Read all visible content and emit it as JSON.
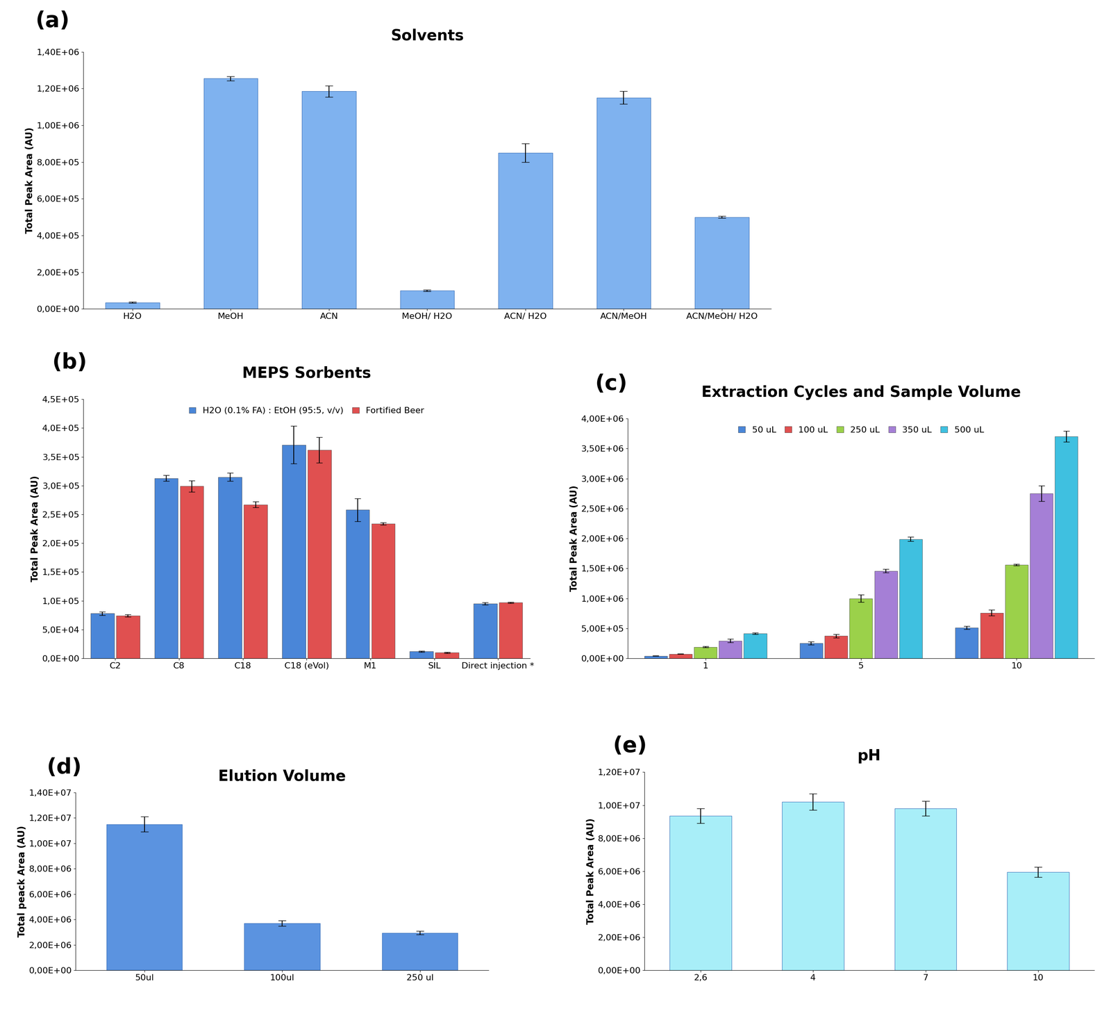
{
  "chart_data": [
    {
      "type": "bar",
      "annotation": "(a)",
      "title": "Solvents",
      "y_label": "Total Peak Area (AU)",
      "categories": [
        "H2O",
        "MeOH",
        "ACN",
        "MeOH/ H2O",
        "ACN/ H2O",
        "ACN/MeOH",
        "ACN/MeOH/ H2O"
      ],
      "values": [
        35000,
        1255000,
        1185000,
        100000,
        850000,
        1150000,
        500000
      ],
      "errors": [
        3000,
        12000,
        30000,
        4000,
        50000,
        35000,
        5000
      ],
      "color": "#7fb2ef",
      "ylim": [
        0,
        1400000
      ],
      "yticks": [
        {
          "value": 0,
          "label": "0,00E+00"
        },
        {
          "value": 200000,
          "label": "2,00E+05"
        },
        {
          "value": 400000,
          "label": "4,00E+05"
        },
        {
          "value": 600000,
          "label": "6,00E+05"
        },
        {
          "value": 800000,
          "label": "8,00E+05"
        },
        {
          "value": 1000000,
          "label": "1,00E+06"
        },
        {
          "value": 1200000,
          "label": "1,20E+06"
        },
        {
          "value": 1400000,
          "label": "1,40E+06"
        }
      ],
      "grid": false
    },
    {
      "type": "bar",
      "annotation": "(b)",
      "title": "MEPS Sorbents",
      "y_label": "Total Peak Area (AU)",
      "categories": [
        "C2",
        "C8",
        "C18",
        "C18 (eVol)",
        "M1",
        "SIL",
        "Direct injection *"
      ],
      "series": [
        {
          "name": "H2O (0.1% FA) : EtOH (95:5, v/v)",
          "color": "#4a86d8",
          "values": [
            78000,
            313000,
            315000,
            371000,
            258000,
            12000,
            95000
          ],
          "errors": [
            3000,
            5000,
            7000,
            33000,
            20000,
            1000,
            2000
          ]
        },
        {
          "name": "Fortified Beer",
          "color": "#e05050",
          "values": [
            74000,
            299000,
            267000,
            362000,
            234000,
            10000,
            97000
          ],
          "errors": [
            2000,
            10000,
            5000,
            22000,
            2000,
            1000,
            1000
          ]
        }
      ],
      "ylim": [
        0,
        450000
      ],
      "yticks": [
        {
          "value": 0,
          "label": "0,0E+00"
        },
        {
          "value": 50000,
          "label": "5,0E+04"
        },
        {
          "value": 100000,
          "label": "1,0E+05"
        },
        {
          "value": 150000,
          "label": "1,5E+05"
        },
        {
          "value": 200000,
          "label": "2,0E+05"
        },
        {
          "value": 250000,
          "label": "2,5E+05"
        },
        {
          "value": 300000,
          "label": "3,0E+05"
        },
        {
          "value": 350000,
          "label": "3,5E+05"
        },
        {
          "value": 400000,
          "label": "4,0E+05"
        },
        {
          "value": 450000,
          "label": "4,5E+05"
        }
      ],
      "legend": "upper center",
      "grid": false
    },
    {
      "type": "bar",
      "annotation": "(c)",
      "title": "Extraction Cycles and Sample Volume",
      "y_label": "Total Peak Area (AU)",
      "categories": [
        "1",
        "5",
        "10"
      ],
      "series": [
        {
          "name": "50 uL",
          "color": "#4a86d8",
          "values": [
            40000,
            255000,
            510000
          ],
          "errors": [
            3000,
            25000,
            25000
          ]
        },
        {
          "name": "100 uL",
          "color": "#e05050",
          "values": [
            75000,
            375000,
            760000
          ],
          "errors": [
            5000,
            30000,
            50000
          ]
        },
        {
          "name": "250 uL",
          "color": "#9bd14a",
          "values": [
            190000,
            1000000,
            1560000
          ],
          "errors": [
            10000,
            60000,
            15000
          ]
        },
        {
          "name": "350 uL",
          "color": "#a57fd6",
          "values": [
            295000,
            1460000,
            2750000
          ],
          "errors": [
            30000,
            30000,
            130000
          ]
        },
        {
          "name": "500 uL",
          "color": "#3fc0e0",
          "values": [
            415000,
            1990000,
            3700000
          ],
          "errors": [
            10000,
            35000,
            90000
          ]
        }
      ],
      "ylim": [
        0,
        4000000
      ],
      "yticks": [
        {
          "value": 0,
          "label": "0,00E+00"
        },
        {
          "value": 500000,
          "label": "5,00E+05"
        },
        {
          "value": 1000000,
          "label": "1,00E+06"
        },
        {
          "value": 1500000,
          "label": "1,50E+06"
        },
        {
          "value": 2000000,
          "label": "2,00E+06"
        },
        {
          "value": 2500000,
          "label": "2,50E+06"
        },
        {
          "value": 3000000,
          "label": "3,00E+06"
        },
        {
          "value": 3500000,
          "label": "3,50E+06"
        },
        {
          "value": 4000000,
          "label": "4,00E+06"
        }
      ],
      "legend": "upper center",
      "grid": false
    },
    {
      "type": "bar",
      "annotation": "(d)",
      "title": "Elution Volume",
      "y_label": "Total peack Area (AU)",
      "categories": [
        "50ul",
        "100ul",
        "250 ul"
      ],
      "values": [
        11500000,
        3700000,
        2950000
      ],
      "errors": [
        600000,
        200000,
        150000
      ],
      "color": "#5b93e0",
      "ylim": [
        0,
        14000000
      ],
      "yticks": [
        {
          "value": 0,
          "label": "0,00E+00"
        },
        {
          "value": 2000000,
          "label": "2,00E+06"
        },
        {
          "value": 4000000,
          "label": "4,00E+06"
        },
        {
          "value": 6000000,
          "label": "6,00E+06"
        },
        {
          "value": 8000000,
          "label": "8,00E+06"
        },
        {
          "value": 10000000,
          "label": "1,00E+07"
        },
        {
          "value": 12000000,
          "label": "1,20E+07"
        },
        {
          "value": 14000000,
          "label": "1,40E+07"
        }
      ],
      "grid": false
    },
    {
      "type": "bar",
      "annotation": "(e)",
      "title": "pH",
      "y_label": "Total Peak Area (AU)",
      "categories": [
        "2,6",
        "4",
        "7",
        "10"
      ],
      "values": [
        9350000,
        10200000,
        9800000,
        5950000
      ],
      "errors": [
        450000,
        500000,
        450000,
        300000
      ],
      "color": "#a8eef8",
      "ylim": [
        0,
        12000000
      ],
      "yticks": [
        {
          "value": 0,
          "label": "0,00E+00"
        },
        {
          "value": 2000000,
          "label": "2,00E+06"
        },
        {
          "value": 4000000,
          "label": "4,00E+06"
        },
        {
          "value": 6000000,
          "label": "6,00E+06"
        },
        {
          "value": 8000000,
          "label": "8,00E+06"
        },
        {
          "value": 10000000,
          "label": "1,00E+07"
        },
        {
          "value": 12000000,
          "label": "1,20E+07"
        }
      ],
      "grid": false
    }
  ]
}
